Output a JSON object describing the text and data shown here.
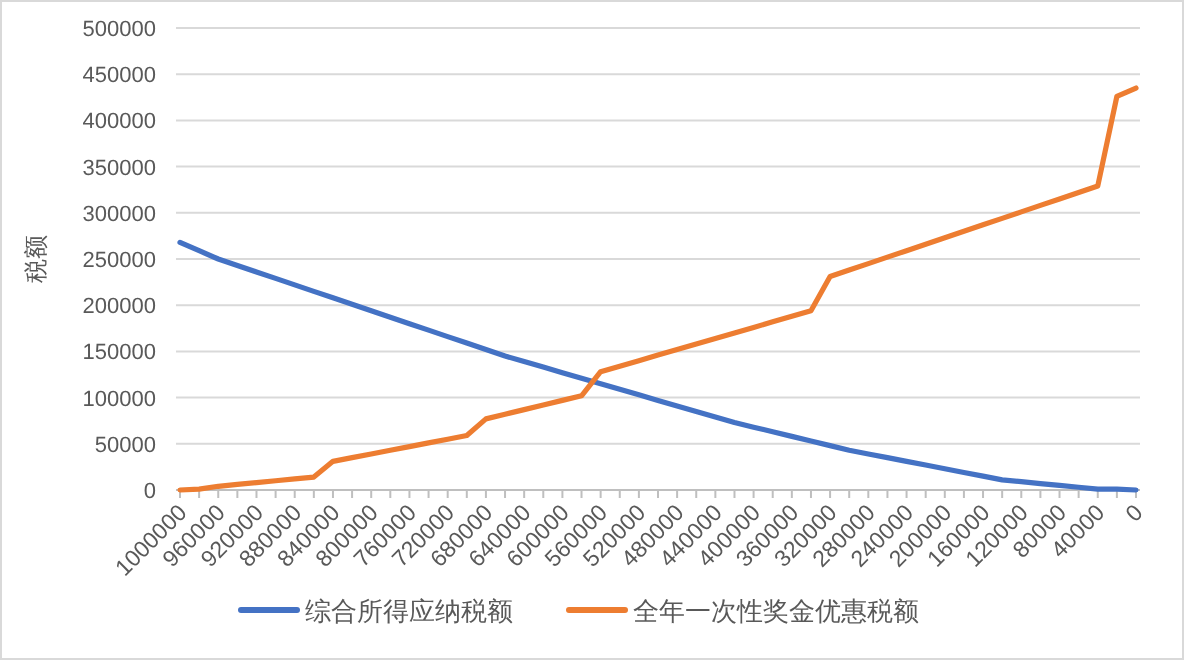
{
  "chart_data": {
    "type": "line",
    "ylabel": "税额",
    "categories": [
      "1000000",
      null,
      "960000",
      null,
      "920000",
      null,
      "880000",
      null,
      "840000",
      null,
      "800000",
      null,
      "760000",
      null,
      "720000",
      null,
      "680000",
      null,
      "640000",
      null,
      "600000",
      null,
      "560000",
      null,
      "520000",
      null,
      "480000",
      null,
      "440000",
      null,
      "400000",
      null,
      "360000",
      null,
      "320000",
      null,
      "280000",
      null,
      "240000",
      null,
      "200000",
      null,
      "160000",
      null,
      "120000",
      null,
      "80000",
      null,
      "40000",
      null,
      "0"
    ],
    "series": [
      {
        "name": "综合所得应纳税额",
        "color": "#4472c4",
        "values": [
          268000,
          259000,
          250000,
          243000,
          236000,
          229000,
          222000,
          215000,
          208000,
          201000,
          194000,
          187000,
          180000,
          173000,
          166000,
          159000,
          152000,
          145000,
          139000,
          133000,
          127000,
          121000,
          115000,
          109000,
          103000,
          97000,
          91000,
          85000,
          79000,
          73000,
          68000,
          63000,
          58000,
          53000,
          48000,
          43000,
          39000,
          35000,
          31000,
          27000,
          23000,
          19000,
          15000,
          11000,
          9000,
          7000,
          5000,
          3000,
          1000,
          1000,
          0
        ]
      },
      {
        "name": "全年一次性奖金优惠税额",
        "color": "#ed7d31",
        "values": [
          0,
          1000,
          4000,
          6000,
          8000,
          10000,
          12000,
          14000,
          31000,
          35000,
          39000,
          43000,
          47000,
          51000,
          55000,
          59000,
          77000,
          82000,
          87000,
          92000,
          97000,
          102000,
          128000,
          134000,
          140000,
          146000,
          152000,
          158000,
          164000,
          170000,
          176000,
          182000,
          188000,
          194000,
          231000,
          238000,
          245000,
          252000,
          259000,
          266000,
          273000,
          280000,
          287000,
          294000,
          301000,
          308000,
          315000,
          322000,
          329000,
          426000,
          435000
        ]
      }
    ],
    "ylim": [
      0,
      500000
    ],
    "yticks": [
      0,
      50000,
      100000,
      150000,
      200000,
      250000,
      300000,
      350000,
      400000,
      450000,
      500000
    ],
    "grid": "y",
    "legend": "bottom",
    "marker": "none",
    "line_style": "solid"
  }
}
